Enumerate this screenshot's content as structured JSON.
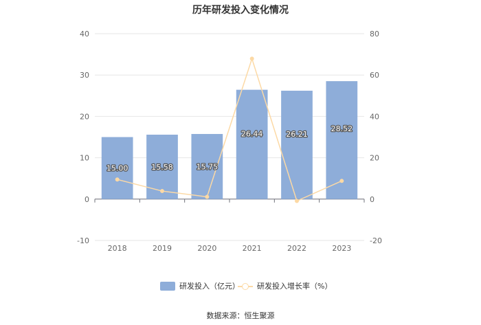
{
  "chart_data": {
    "type": "bar",
    "title": "历年研发投入变化情况",
    "categories": [
      "2018",
      "2019",
      "2020",
      "2021",
      "2022",
      "2023"
    ],
    "series": [
      {
        "name": "研发投入（亿元）",
        "type": "bar",
        "axis": "left",
        "values": [
          15.0,
          15.58,
          15.75,
          26.44,
          26.21,
          28.52
        ],
        "labels": [
          "15.00",
          "15.58",
          "15.75",
          "26.44",
          "26.21",
          "28.52"
        ],
        "color": "#8eadd9"
      },
      {
        "name": "研发投入增长率（%）",
        "type": "line",
        "axis": "right",
        "values": [
          9.5,
          3.9,
          1.1,
          67.9,
          -0.9,
          8.8
        ],
        "color": "#fcd9a5"
      }
    ],
    "y_left": {
      "ylim": [
        -10,
        40
      ],
      "ticks": [
        "-10",
        "0",
        "10",
        "20",
        "30",
        "40"
      ]
    },
    "y_right": {
      "ylim": [
        -20,
        80
      ],
      "ticks": [
        "-20",
        "0",
        "20",
        "40",
        "60",
        "80"
      ]
    },
    "grid": true,
    "legend_position": "bottom-center"
  },
  "source_text": "数据来源：恒生聚源"
}
